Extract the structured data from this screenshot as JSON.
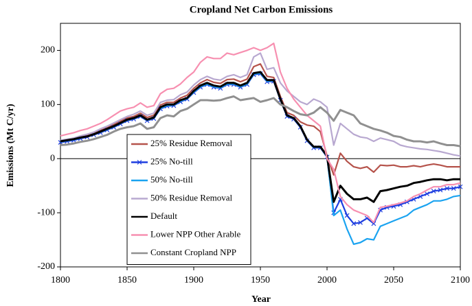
{
  "chart_data": {
    "type": "line",
    "title": "Cropland Net Carbon Emissions",
    "x_label": "Year",
    "y_label": "Emissions (Mt C/yr)",
    "x": [
      1800,
      1805,
      1810,
      1815,
      1820,
      1825,
      1830,
      1835,
      1840,
      1845,
      1850,
      1855,
      1860,
      1865,
      1870,
      1875,
      1880,
      1885,
      1890,
      1895,
      1900,
      1905,
      1910,
      1915,
      1920,
      1925,
      1930,
      1935,
      1940,
      1945,
      1950,
      1955,
      1960,
      1965,
      1970,
      1975,
      1980,
      1985,
      1990,
      1995,
      2000,
      2005,
      2010,
      2015,
      2020,
      2025,
      2030,
      2035,
      2040,
      2045,
      2050,
      2055,
      2060,
      2065,
      2070,
      2075,
      2080,
      2085,
      2090,
      2095,
      2100
    ],
    "xlim": [
      1800,
      2100
    ],
    "xticks": [
      1800,
      1850,
      1900,
      1950,
      2000,
      2050,
      2100
    ],
    "ylim": [
      -200,
      250
    ],
    "yticks": [
      -200,
      -100,
      0,
      100,
      200
    ],
    "series": [
      {
        "name": "25% Residue Removal",
        "color": "#b5524a",
        "values": [
          33,
          35,
          37,
          40,
          43,
          47,
          52,
          57,
          63,
          69,
          75,
          78,
          84,
          76,
          80,
          99,
          104,
          104,
          112,
          117,
          130,
          140,
          146,
          141,
          139,
          146,
          147,
          142,
          147,
          170,
          175,
          152,
          150,
          115,
          85,
          80,
          68,
          62,
          60,
          50,
          5,
          -30,
          10,
          -5,
          -15,
          -18,
          -15,
          -25,
          -12,
          -13,
          -12,
          -15,
          -15,
          -13,
          -15,
          -12,
          -10,
          -12,
          -15,
          -15,
          -15
        ]
      },
      {
        "name": "25% No-till",
        "color": "#1f3fe0",
        "marker": "x",
        "values": [
          30,
          32,
          34,
          37,
          40,
          44,
          48,
          53,
          58,
          64,
          70,
          73,
          78,
          70,
          74,
          92,
          97,
          98,
          105,
          110,
          122,
          132,
          137,
          132,
          130,
          137,
          137,
          132,
          137,
          155,
          157,
          142,
          143,
          108,
          78,
          73,
          58,
          33,
          20,
          20,
          3,
          -100,
          -75,
          -105,
          -120,
          -118,
          -110,
          -120,
          -95,
          -90,
          -88,
          -85,
          -80,
          -75,
          -70,
          -65,
          -60,
          -58,
          -55,
          -55,
          -52
        ]
      },
      {
        "name": "50% No-till",
        "color": "#1aa3f0",
        "values": [
          31,
          33,
          35,
          38,
          41,
          45,
          49,
          54,
          59,
          65,
          71,
          74,
          79,
          71,
          75,
          93,
          98,
          99,
          106,
          111,
          123,
          133,
          138,
          133,
          131,
          138,
          138,
          133,
          138,
          156,
          158,
          143,
          144,
          109,
          79,
          74,
          59,
          34,
          21,
          21,
          4,
          -105,
          -95,
          -130,
          -158,
          -155,
          -148,
          -150,
          -125,
          -120,
          -115,
          -110,
          -105,
          -95,
          -90,
          -85,
          -78,
          -78,
          -75,
          -70,
          -68
        ]
      },
      {
        "name": "50% Residue Removal",
        "color": "#b8a8d0",
        "values": [
          34,
          36,
          38,
          42,
          45,
          49,
          55,
          60,
          66,
          72,
          78,
          82,
          88,
          80,
          84,
          104,
          108,
          109,
          118,
          123,
          136,
          146,
          152,
          147,
          145,
          152,
          155,
          150,
          155,
          188,
          195,
          165,
          168,
          140,
          125,
          115,
          105,
          100,
          110,
          105,
          95,
          25,
          65,
          55,
          45,
          40,
          38,
          32,
          38,
          35,
          32,
          25,
          22,
          20,
          18,
          17,
          15,
          13,
          10,
          7,
          5
        ]
      },
      {
        "name": "Default",
        "color": "#000000",
        "values": [
          32,
          34,
          36,
          39,
          41,
          45,
          50,
          55,
          60,
          66,
          72,
          75,
          80,
          72,
          76,
          95,
          100,
          100,
          108,
          112,
          125,
          135,
          140,
          135,
          133,
          140,
          140,
          135,
          140,
          158,
          160,
          145,
          145,
          110,
          80,
          75,
          60,
          35,
          22,
          22,
          5,
          -80,
          -50,
          -65,
          -75,
          -75,
          -72,
          -80,
          -60,
          -58,
          -55,
          -52,
          -50,
          -45,
          -43,
          -40,
          -38,
          -38,
          -40,
          -38,
          -38
        ]
      },
      {
        "name": "Lower NPP Other Arable",
        "color": "#f78fb0",
        "values": [
          42,
          45,
          48,
          52,
          55,
          60,
          65,
          72,
          80,
          88,
          92,
          95,
          103,
          95,
          98,
          120,
          128,
          130,
          138,
          150,
          160,
          178,
          188,
          185,
          185,
          195,
          192,
          196,
          200,
          205,
          200,
          205,
          213,
          160,
          130,
          110,
          95,
          80,
          70,
          60,
          0,
          -20,
          -70,
          -85,
          -95,
          -100,
          -105,
          -118,
          -90,
          -88,
          -85,
          -82,
          -78,
          -70,
          -65,
          -58,
          -52,
          -52,
          -48,
          -48,
          -45
        ]
      },
      {
        "name": "Constant Cropland NPP",
        "color": "#909090",
        "values": [
          25,
          26,
          28,
          31,
          33,
          36,
          40,
          44,
          50,
          55,
          58,
          60,
          65,
          55,
          58,
          75,
          80,
          78,
          88,
          92,
          100,
          108,
          108,
          107,
          108,
          112,
          115,
          108,
          110,
          112,
          105,
          108,
          112,
          100,
          95,
          88,
          82,
          80,
          85,
          95,
          85,
          70,
          90,
          85,
          80,
          65,
          60,
          55,
          52,
          48,
          42,
          40,
          35,
          32,
          32,
          30,
          32,
          28,
          25,
          25,
          23
        ]
      }
    ]
  }
}
